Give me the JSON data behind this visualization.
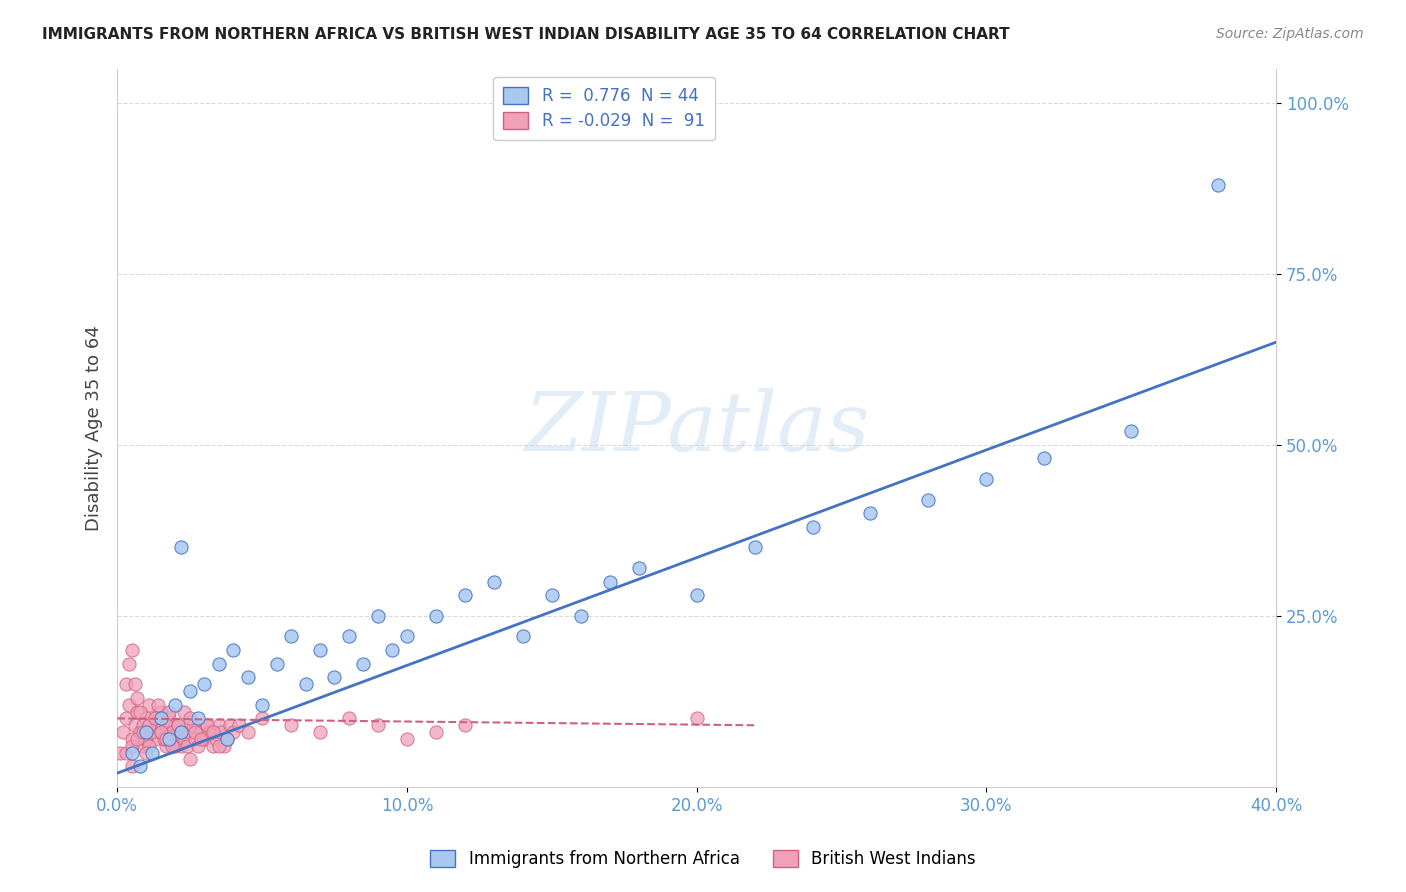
{
  "title": "IMMIGRANTS FROM NORTHERN AFRICA VS BRITISH WEST INDIAN DISABILITY AGE 35 TO 64 CORRELATION CHART",
  "source": "Source: ZipAtlas.com",
  "ylabel": "Disability Age 35 to 64",
  "xlabel": "",
  "legend_label_blue": "Immigrants from Northern Africa",
  "legend_label_pink": "British West Indians",
  "R_blue": 0.776,
  "N_blue": 44,
  "R_pink": -0.029,
  "N_pink": 91,
  "xlim": [
    0.0,
    0.4
  ],
  "ylim": [
    0.0,
    1.05
  ],
  "yticks": [
    0.25,
    0.5,
    0.75,
    1.0
  ],
  "xticks": [
    0.0,
    0.1,
    0.2,
    0.3,
    0.4
  ],
  "ytick_labels": [
    "25.0%",
    "50.0%",
    "75.0%",
    "100.0%"
  ],
  "xtick_labels": [
    "0.0%",
    "10.0%",
    "20.0%",
    "30.0%",
    "40.0%"
  ],
  "blue_scatter_x": [
    0.005,
    0.008,
    0.01,
    0.012,
    0.015,
    0.018,
    0.02,
    0.022,
    0.025,
    0.028,
    0.03,
    0.035,
    0.04,
    0.045,
    0.05,
    0.055,
    0.06,
    0.065,
    0.07,
    0.075,
    0.08,
    0.085,
    0.09,
    0.095,
    0.1,
    0.11,
    0.12,
    0.13,
    0.14,
    0.15,
    0.16,
    0.17,
    0.18,
    0.2,
    0.22,
    0.24,
    0.26,
    0.28,
    0.3,
    0.32,
    0.35,
    0.38,
    0.022,
    0.038
  ],
  "blue_scatter_y": [
    0.05,
    0.03,
    0.08,
    0.05,
    0.1,
    0.07,
    0.12,
    0.08,
    0.14,
    0.1,
    0.15,
    0.18,
    0.2,
    0.16,
    0.12,
    0.18,
    0.22,
    0.15,
    0.2,
    0.16,
    0.22,
    0.18,
    0.25,
    0.2,
    0.22,
    0.25,
    0.28,
    0.3,
    0.22,
    0.28,
    0.25,
    0.3,
    0.32,
    0.28,
    0.35,
    0.38,
    0.4,
    0.42,
    0.45,
    0.48,
    0.52,
    0.88,
    0.35,
    0.07
  ],
  "pink_scatter_x": [
    0.001,
    0.002,
    0.003,
    0.004,
    0.005,
    0.006,
    0.007,
    0.008,
    0.009,
    0.01,
    0.011,
    0.012,
    0.013,
    0.014,
    0.015,
    0.016,
    0.017,
    0.018,
    0.019,
    0.02,
    0.021,
    0.022,
    0.003,
    0.004,
    0.005,
    0.006,
    0.007,
    0.008,
    0.009,
    0.01,
    0.011,
    0.012,
    0.013,
    0.014,
    0.015,
    0.016,
    0.017,
    0.018,
    0.019,
    0.02,
    0.021,
    0.022,
    0.023,
    0.024,
    0.025,
    0.026,
    0.027,
    0.028,
    0.029,
    0.03,
    0.031,
    0.032,
    0.033,
    0.034,
    0.035,
    0.036,
    0.037,
    0.038,
    0.039,
    0.04,
    0.042,
    0.045,
    0.05,
    0.06,
    0.07,
    0.08,
    0.09,
    0.1,
    0.11,
    0.12,
    0.003,
    0.005,
    0.007,
    0.009,
    0.011,
    0.013,
    0.015,
    0.017,
    0.019,
    0.021,
    0.023,
    0.025,
    0.027,
    0.029,
    0.031,
    0.033,
    0.035,
    0.2,
    0.025,
    0.01,
    0.005
  ],
  "pink_scatter_y": [
    0.05,
    0.08,
    0.1,
    0.12,
    0.07,
    0.09,
    0.11,
    0.08,
    0.06,
    0.1,
    0.12,
    0.08,
    0.07,
    0.09,
    0.11,
    0.08,
    0.06,
    0.1,
    0.08,
    0.09,
    0.07,
    0.06,
    0.15,
    0.18,
    0.2,
    0.15,
    0.13,
    0.11,
    0.09,
    0.07,
    0.06,
    0.08,
    0.1,
    0.12,
    0.08,
    0.07,
    0.09,
    0.11,
    0.08,
    0.06,
    0.09,
    0.08,
    0.07,
    0.06,
    0.08,
    0.09,
    0.07,
    0.06,
    0.08,
    0.07,
    0.09,
    0.08,
    0.06,
    0.07,
    0.09,
    0.08,
    0.06,
    0.07,
    0.09,
    0.08,
    0.09,
    0.08,
    0.1,
    0.09,
    0.08,
    0.1,
    0.09,
    0.07,
    0.08,
    0.09,
    0.05,
    0.06,
    0.07,
    0.08,
    0.09,
    0.1,
    0.08,
    0.07,
    0.06,
    0.09,
    0.11,
    0.1,
    0.08,
    0.07,
    0.09,
    0.08,
    0.06,
    0.1,
    0.04,
    0.05,
    0.03
  ],
  "blue_line_x": [
    0.0,
    0.4
  ],
  "blue_line_y": [
    0.02,
    0.65
  ],
  "pink_line_x": [
    0.0,
    0.22
  ],
  "pink_line_y": [
    0.1,
    0.09
  ],
  "color_blue": "#a8c8f0",
  "color_blue_dark": "#4472c4",
  "color_pink": "#f0a0b8",
  "color_pink_dark": "#d06080",
  "watermark": "ZIPatlas",
  "background_color": "#ffffff",
  "grid_color": "#d8d8d8"
}
